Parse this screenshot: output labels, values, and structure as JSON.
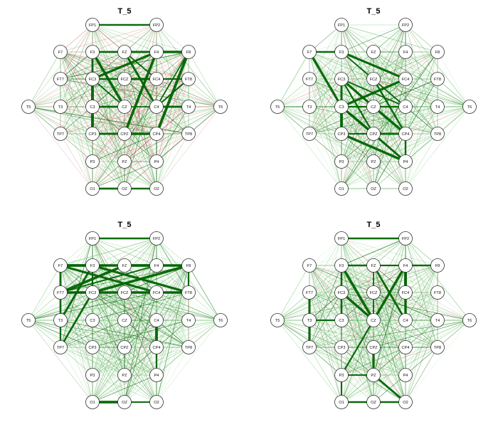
{
  "panels": [
    {
      "title": "T_5",
      "theme": "green-red"
    },
    {
      "title": "T_5",
      "theme": "green"
    },
    {
      "title": "T_5",
      "theme": "green-frontal"
    },
    {
      "title": "T_5",
      "theme": "green-mixed"
    }
  ],
  "node_labels": [
    "FP1",
    "FP2",
    "F7",
    "F3",
    "FZ",
    "F4",
    "F8",
    "FT7",
    "FC3",
    "FCZ",
    "FC4",
    "FT8",
    "T5",
    "T3",
    "C3",
    "CZ",
    "C4",
    "T4",
    "T6",
    "TP7",
    "CP3",
    "CPZ",
    "CP4",
    "TP8",
    "P3",
    "PZ",
    "P4",
    "O1",
    "OZ",
    "O2"
  ],
  "colors": {
    "positive": "#006400",
    "positive_light": "#7fc97f",
    "negative": "#cd5c5c",
    "node_fill": "#ffffff",
    "node_stroke": "#333333"
  }
}
